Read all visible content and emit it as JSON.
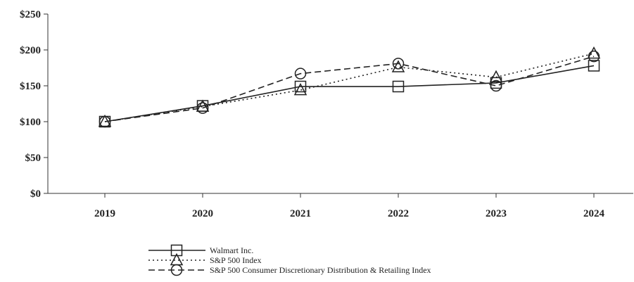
{
  "chart_data": {
    "type": "line",
    "title": "",
    "xlabel": "",
    "ylabel": "",
    "categories": [
      "2019",
      "2020",
      "2021",
      "2022",
      "2023",
      "2024"
    ],
    "ylim": [
      0,
      250
    ],
    "yticks": [
      0,
      50,
      100,
      150,
      200,
      250
    ],
    "ytick_labels": [
      "$0",
      "$50",
      "$100",
      "$150",
      "$200",
      "$250"
    ],
    "grid": false,
    "legend_position": "bottom-center",
    "series": [
      {
        "name": "Walmart Inc.",
        "values": [
          100,
          122,
          149,
          149,
          154,
          178
        ],
        "line_style": "solid",
        "marker": "square",
        "color": "#222222"
      },
      {
        "name": "S&P 500 Index",
        "values": [
          100,
          121,
          144,
          176,
          162,
          195
        ],
        "line_style": "dotted",
        "marker": "triangle",
        "color": "#222222"
      },
      {
        "name": "S&P 500 Consumer Discretionary Distribution & Retailing Index",
        "values": [
          100,
          119,
          167,
          181,
          150,
          191
        ],
        "line_style": "dashed",
        "marker": "circle",
        "color": "#222222"
      }
    ]
  }
}
